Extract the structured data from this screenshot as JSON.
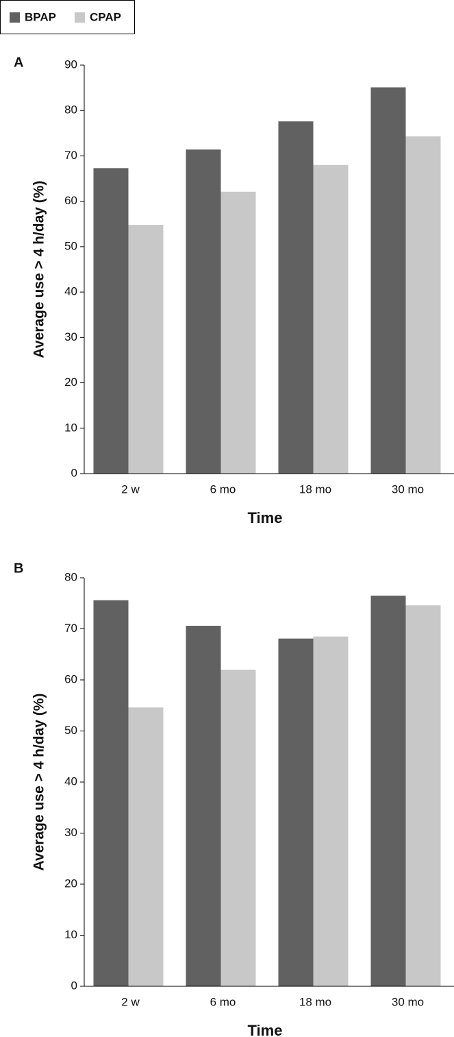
{
  "chart_data": [
    {
      "type": "bar",
      "panel": "A",
      "categories": [
        "2 w",
        "6 mo",
        "18 mo",
        "30 mo"
      ],
      "series": [
        {
          "name": "BPAP",
          "color": "#616161",
          "values": [
            67.3,
            71.4,
            77.6,
            85.1
          ]
        },
        {
          "name": "CPAP",
          "color": "#c8c8c8",
          "values": [
            54.8,
            62.1,
            68.0,
            74.3
          ]
        }
      ],
      "ylim": [
        0,
        90
      ],
      "yticks": [
        0,
        10,
        20,
        30,
        40,
        50,
        60,
        70,
        80,
        90
      ],
      "y_label": "Average use > 4 h/day (%)",
      "x_label": "Time"
    },
    {
      "type": "bar",
      "panel": "B",
      "categories": [
        "2 w",
        "6 mo",
        "18 mo",
        "30 mo"
      ],
      "series": [
        {
          "color": "#616161",
          "values": [
            75.6,
            70.6,
            68.1,
            76.5
          ]
        },
        {
          "color": "#c8c8c8",
          "values": [
            54.6,
            62.0,
            68.5,
            74.6
          ]
        }
      ],
      "ylim": [
        0,
        80
      ],
      "yticks": [
        0,
        10,
        20,
        30,
        40,
        50,
        60,
        70,
        80
      ],
      "y_label": "Average use > 4 h/day (%)",
      "x_label": "Time"
    }
  ]
}
